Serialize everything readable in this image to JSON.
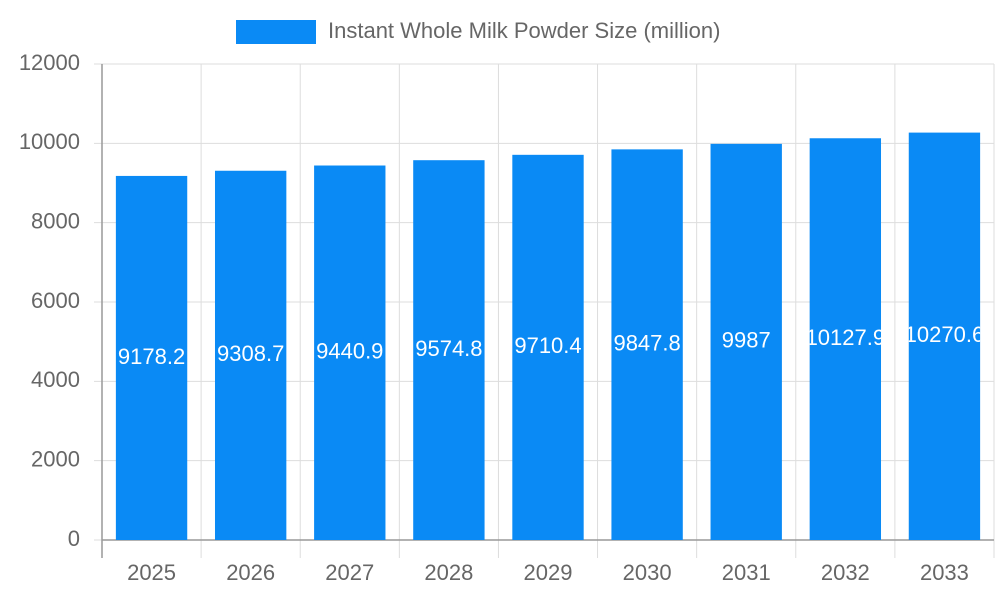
{
  "chart_data": {
    "type": "bar",
    "legend_label": "Instant Whole Milk Powder Size (million)",
    "color": "#0a8af5",
    "categories": [
      "2025",
      "2026",
      "2027",
      "2028",
      "2029",
      "2030",
      "2031",
      "2032",
      "2033"
    ],
    "values": [
      9178.2,
      9308.7,
      9440.9,
      9574.8,
      9710.4,
      9847.8,
      9987,
      10127.9,
      10270.6
    ],
    "ylim": [
      0,
      12000
    ],
    "yticks": [
      0,
      2000,
      4000,
      6000,
      8000,
      10000,
      12000
    ],
    "grid": true
  }
}
